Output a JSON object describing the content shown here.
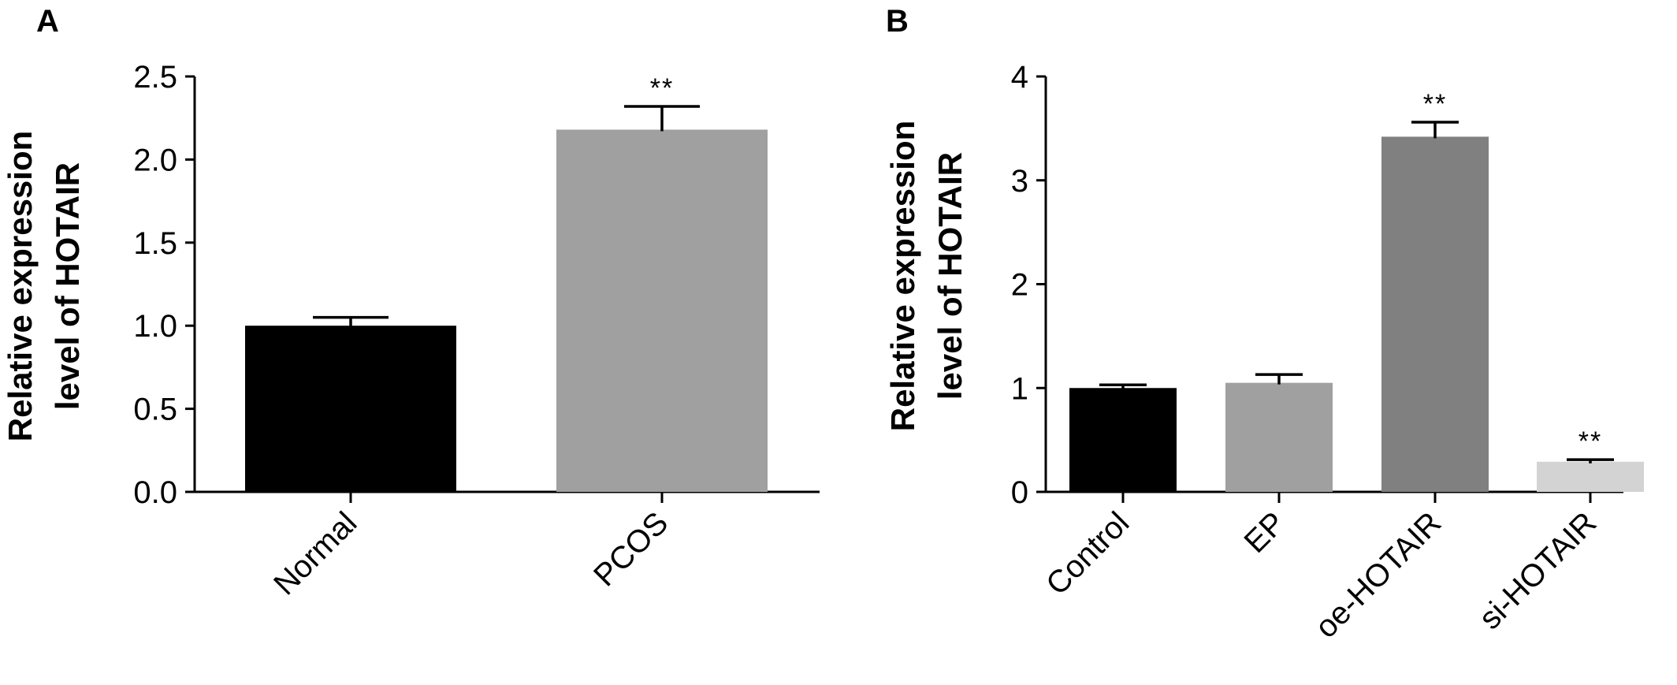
{
  "chart_data": [
    {
      "type": "bar",
      "panel": "A",
      "ylabel_lines": [
        "Relative expression",
        "level of HOTAIR"
      ],
      "categories": [
        "Normal",
        "PCOS"
      ],
      "values": [
        1.0,
        2.18
      ],
      "errors": [
        0.05,
        0.14
      ],
      "significance": [
        "",
        "**"
      ],
      "colors": [
        "#000000",
        "#a0a0a0"
      ],
      "ylim": [
        0,
        2.5
      ],
      "yticks": [
        0.0,
        0.5,
        1.0,
        1.5,
        2.0,
        2.5
      ],
      "ytick_labels": [
        "0.0",
        "0.5",
        "1.0",
        "1.5",
        "2.0",
        "2.5"
      ],
      "grid": false
    },
    {
      "type": "bar",
      "panel": "B",
      "ylabel_lines": [
        "Relative expression",
        "level of HOTAIR"
      ],
      "categories": [
        "Control",
        "EP",
        "oe-HOTAIR",
        "si-HOTAIR"
      ],
      "values": [
        1.0,
        1.05,
        3.42,
        0.29
      ],
      "errors": [
        0.03,
        0.08,
        0.14,
        0.02
      ],
      "significance": [
        "",
        "",
        "**",
        "**"
      ],
      "colors": [
        "#000000",
        "#a0a0a0",
        "#808080",
        "#d3d3d3"
      ],
      "ylim": [
        0,
        4
      ],
      "yticks": [
        0,
        1,
        2,
        3,
        4
      ],
      "ytick_labels": [
        "0",
        "1",
        "2",
        "3",
        "4"
      ],
      "grid": false
    }
  ]
}
